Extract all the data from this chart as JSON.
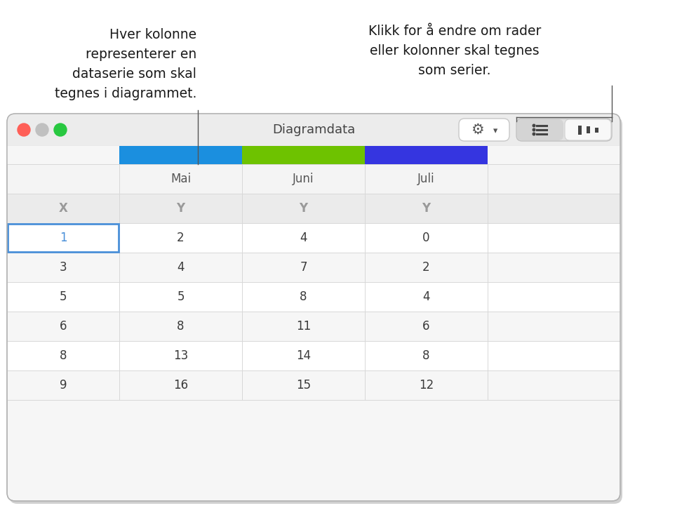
{
  "title": "Diagramdata",
  "annotation_left_lines": [
    "Hver kolonne",
    "representerer en",
    "dataserie som skal",
    "tegnes i diagrammet."
  ],
  "annotation_right_lines": [
    "Klikk for å endre om rader",
    "eller kolonner skal tegnes",
    "som serier."
  ],
  "col_months": [
    "Mai",
    "Juni",
    "Juli"
  ],
  "col_colors": [
    "#1b8fdf",
    "#6ec200",
    "#3535e0"
  ],
  "data_rows": [
    [
      "1",
      "2",
      "4",
      "0"
    ],
    [
      "3",
      "4",
      "7",
      "2"
    ],
    [
      "5",
      "5",
      "8",
      "4"
    ],
    [
      "6",
      "8",
      "11",
      "6"
    ],
    [
      "8",
      "13",
      "14",
      "8"
    ],
    [
      "9",
      "16",
      "15",
      "12"
    ]
  ],
  "bg_color": "#ffffff",
  "window_bg": "#f6f6f6",
  "titlebar_bg": "#ececec",
  "grid_color": "#d8d8d8",
  "header_text_color": "#999999",
  "data_text_color": "#3a3a3a",
  "month_text_color": "#555555",
  "selected_cell_border": "#4a90d9",
  "selected_text_color": "#4a90d9",
  "annotation_color": "#1a1a1a",
  "line_color": "#555555"
}
